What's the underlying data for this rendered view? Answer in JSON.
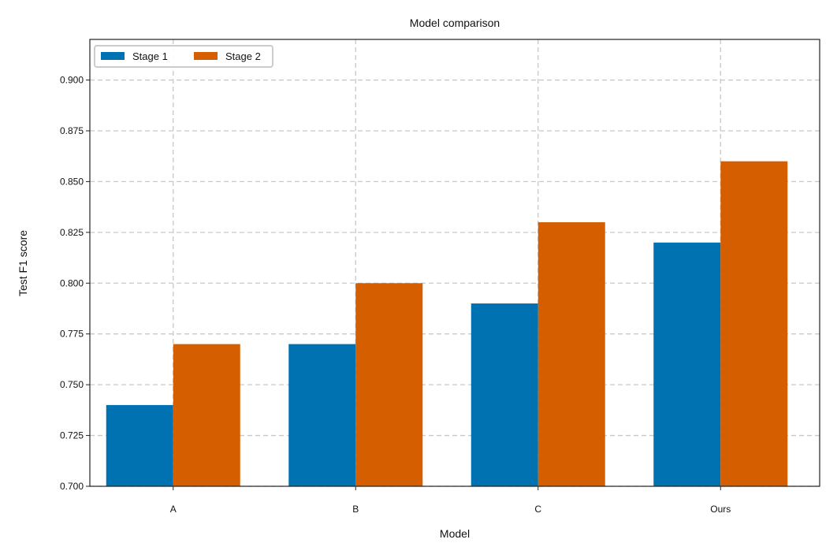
{
  "chart_data": {
    "type": "bar",
    "title": "Model comparison",
    "xlabel": "Model",
    "ylabel": "Test F1 score",
    "categories": [
      "A",
      "B",
      "C",
      "Ours"
    ],
    "series": [
      {
        "name": "Stage 1",
        "values": [
          0.74,
          0.77,
          0.79,
          0.82
        ],
        "color": "#0072B2"
      },
      {
        "name": "Stage 2",
        "values": [
          0.77,
          0.8,
          0.83,
          0.86
        ],
        "color": "#D55E00"
      }
    ],
    "ylim": [
      0.7,
      0.92
    ],
    "yticks": [
      "0.700",
      "0.725",
      "0.750",
      "0.775",
      "0.800",
      "0.825",
      "0.850",
      "0.875",
      "0.900"
    ],
    "grid": true,
    "legend_position": "top-left"
  }
}
